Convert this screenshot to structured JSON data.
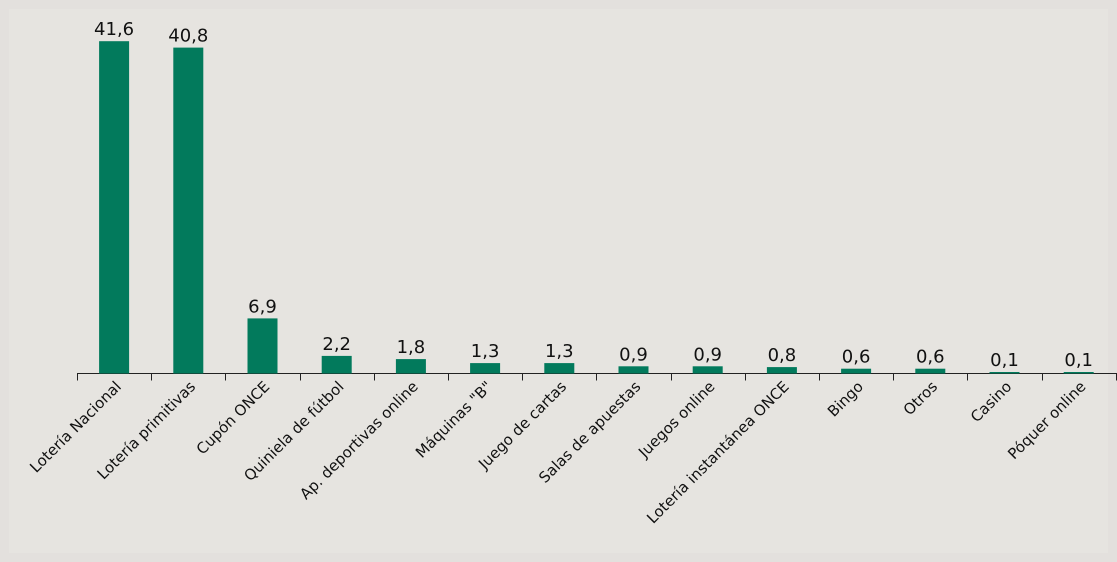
{
  "chart_data": {
    "type": "bar",
    "categories": [
      "Lotería Nacional",
      "Lotería primitivas",
      "Cupón ONCE",
      "Quiniela de fútbol",
      "Ap. deportivas online",
      "Máquinas \"B\"",
      "Juego de cartas",
      "Salas de apuestas",
      "Juegos online",
      "Lotería instantánea ONCE",
      "Bingo",
      "Otros",
      "Casino",
      "Póquer online"
    ],
    "values": [
      41.6,
      40.8,
      6.9,
      2.2,
      1.8,
      1.3,
      1.3,
      0.9,
      0.9,
      0.8,
      0.6,
      0.6,
      0.1,
      0.1
    ],
    "value_labels": [
      "41,6",
      "40,8",
      "6,9",
      "2,2",
      "1,8",
      "1,3",
      "1,3",
      "0,9",
      "0,9",
      "0,8",
      "0,6",
      "0,6",
      "0,1",
      "0,1"
    ],
    "ylim": [
      0,
      42
    ],
    "grid": false,
    "legend": "none",
    "title": "",
    "xlabel": "",
    "ylabel": "",
    "colors": {
      "bar": "#027a5c",
      "background": "#e6e4e0",
      "frame": "#e3e0dd"
    }
  }
}
